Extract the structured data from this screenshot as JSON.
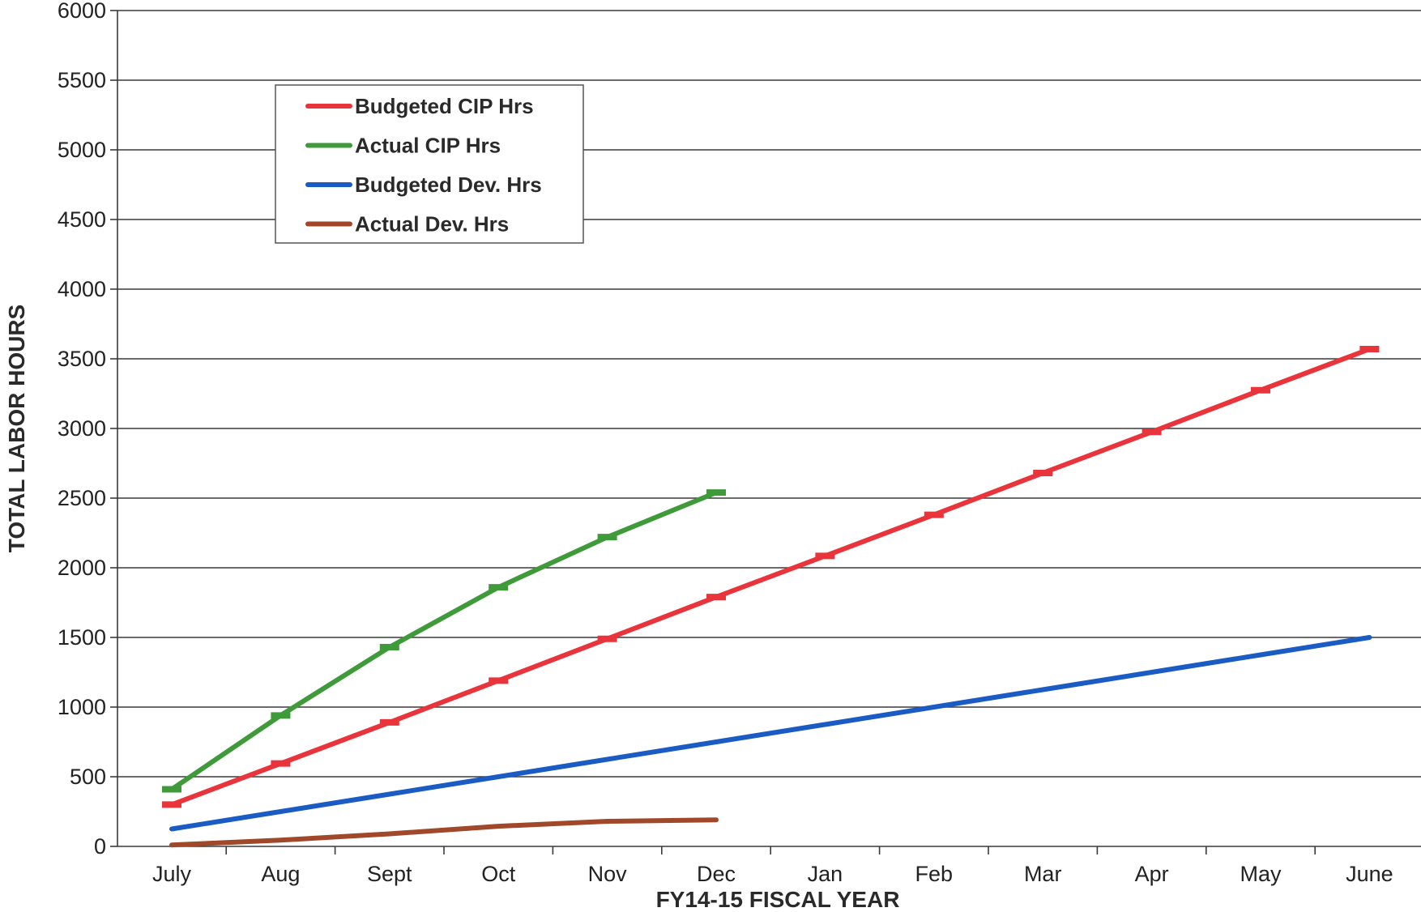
{
  "chart_data": {
    "type": "line",
    "title": "",
    "xlabel": "FY14-15 FISCAL YEAR",
    "ylabel": "TOTAL LABOR HOURS",
    "categories": [
      "July",
      "Aug",
      "Sept",
      "Oct",
      "Nov",
      "Dec",
      "Jan",
      "Feb",
      "Mar",
      "Apr",
      "May",
      "June"
    ],
    "ylim": [
      0,
      6000
    ],
    "yticks": [
      0,
      500,
      1000,
      1500,
      2000,
      2500,
      3000,
      3500,
      4000,
      4500,
      5000,
      5500,
      6000
    ],
    "grid": "horizontal",
    "legend_position": "top-left",
    "series": [
      {
        "name": "Budgeted CIP Hrs",
        "color": "#e8343a",
        "markers": true,
        "values": [
          300,
          595,
          890,
          1190,
          1490,
          1790,
          2085,
          2380,
          2680,
          2975,
          3275,
          3570
        ]
      },
      {
        "name": "Actual CIP Hrs",
        "color": "#3f9a3a",
        "markers": true,
        "values": [
          410,
          940,
          1430,
          1860,
          2220,
          2540,
          null,
          null,
          null,
          null,
          null,
          null
        ]
      },
      {
        "name": "Budgeted Dev. Hrs",
        "color": "#1a5bc4",
        "markers": false,
        "values": [
          125,
          250,
          375,
          500,
          625,
          750,
          875,
          1000,
          1125,
          1250,
          1375,
          1500
        ]
      },
      {
        "name": "Actual Dev. Hrs",
        "color": "#a0482a",
        "markers": false,
        "values": [
          10,
          45,
          90,
          145,
          180,
          190,
          null,
          null,
          null,
          null,
          null,
          null
        ]
      }
    ]
  }
}
